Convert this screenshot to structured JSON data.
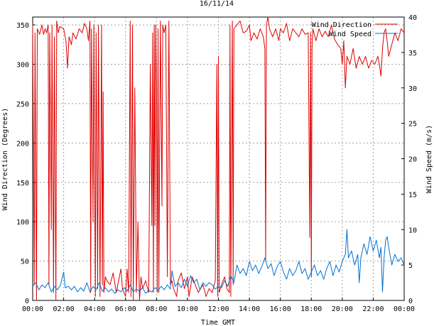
{
  "chart_data": {
    "type": "line",
    "title": "16/11/14",
    "xlabel": "Time GMT",
    "ylabel_left": "Wind Direction (Degrees)",
    "ylabel_right": "Wind Speed (m/s)",
    "x_ticks": [
      "00:00",
      "02:00",
      "04:00",
      "06:00",
      "08:00",
      "10:00",
      "12:00",
      "14:00",
      "16:00",
      "18:00",
      "20:00",
      "22:00",
      "00:00"
    ],
    "x_range_hours": [
      0,
      24
    ],
    "y_left_ticks": [
      0,
      50,
      100,
      150,
      200,
      250,
      300,
      350
    ],
    "y_left_range": [
      0,
      360
    ],
    "y_right_ticks": [
      0,
      5,
      10,
      15,
      20,
      25,
      30,
      35,
      40
    ],
    "y_right_range": [
      0,
      40
    ],
    "grid": true,
    "legend_position": "top-right",
    "series": [
      {
        "name": "Wind Direction",
        "axis": "left",
        "color": "#e00000",
        "points": [
          [
            0.0,
            350
          ],
          [
            0.1,
            20
          ],
          [
            0.15,
            340
          ],
          [
            0.25,
            0
          ],
          [
            0.3,
            345
          ],
          [
            0.45,
            338
          ],
          [
            0.6,
            350
          ],
          [
            0.7,
            338
          ],
          [
            0.8,
            345
          ],
          [
            0.9,
            340
          ],
          [
            1.0,
            350
          ],
          [
            1.05,
            20
          ],
          [
            1.1,
            340
          ],
          [
            1.2,
            90
          ],
          [
            1.25,
            350
          ],
          [
            1.35,
            10
          ],
          [
            1.4,
            335
          ],
          [
            1.5,
            0
          ],
          [
            1.55,
            355
          ],
          [
            1.65,
            340
          ],
          [
            1.75,
            348
          ],
          [
            2.0,
            345
          ],
          [
            2.15,
            330
          ],
          [
            2.25,
            295
          ],
          [
            2.35,
            335
          ],
          [
            2.5,
            325
          ],
          [
            2.6,
            340
          ],
          [
            2.8,
            332
          ],
          [
            3.0,
            345
          ],
          [
            3.2,
            340
          ],
          [
            3.35,
            352
          ],
          [
            3.5,
            345
          ],
          [
            3.6,
            330
          ],
          [
            3.7,
            355
          ],
          [
            3.75,
            10
          ],
          [
            3.8,
            345
          ],
          [
            3.9,
            100
          ],
          [
            3.95,
            350
          ],
          [
            4.05,
            5
          ],
          [
            4.1,
            340
          ],
          [
            4.2,
            15
          ],
          [
            4.25,
            350
          ],
          [
            4.35,
            5
          ],
          [
            4.45,
            350
          ],
          [
            4.5,
            20
          ],
          [
            4.55,
            265
          ],
          [
            4.6,
            10
          ],
          [
            4.7,
            30
          ],
          [
            4.8,
            25
          ],
          [
            5.0,
            20
          ],
          [
            5.2,
            35
          ],
          [
            5.4,
            10
          ],
          [
            5.5,
            20
          ],
          [
            5.7,
            40
          ],
          [
            5.8,
            15
          ],
          [
            6.0,
            5
          ],
          [
            6.1,
            40
          ],
          [
            6.2,
            10
          ],
          [
            6.3,
            355
          ],
          [
            6.35,
            5
          ],
          [
            6.45,
            350
          ],
          [
            6.5,
            0
          ],
          [
            6.6,
            270
          ],
          [
            6.7,
            10
          ],
          [
            6.8,
            100
          ],
          [
            6.9,
            0
          ],
          [
            7.0,
            30
          ],
          [
            7.1,
            15
          ],
          [
            7.3,
            25
          ],
          [
            7.5,
            10
          ],
          [
            7.6,
            300
          ],
          [
            7.7,
            95
          ],
          [
            7.75,
            340
          ],
          [
            7.8,
            10
          ],
          [
            7.85,
            350
          ],
          [
            7.9,
            95
          ],
          [
            7.95,
            350
          ],
          [
            8.0,
            270
          ],
          [
            8.05,
            10
          ],
          [
            8.1,
            345
          ],
          [
            8.15,
            10
          ],
          [
            8.25,
            355
          ],
          [
            8.35,
            120
          ],
          [
            8.4,
            350
          ],
          [
            8.5,
            340
          ],
          [
            8.6,
            350
          ],
          [
            8.7,
            30
          ],
          [
            8.8,
            355
          ],
          [
            8.9,
            20
          ],
          [
            9.0,
            25
          ],
          [
            9.1,
            15
          ],
          [
            9.3,
            5
          ],
          [
            9.4,
            25
          ],
          [
            9.6,
            35
          ],
          [
            9.8,
            15
          ],
          [
            10.0,
            30
          ],
          [
            10.1,
            5
          ],
          [
            10.3,
            30
          ],
          [
            10.5,
            20
          ],
          [
            10.7,
            10
          ],
          [
            11.0,
            20
          ],
          [
            11.2,
            5
          ],
          [
            11.4,
            15
          ],
          [
            11.6,
            10
          ],
          [
            11.8,
            25
          ],
          [
            11.9,
            300
          ],
          [
            11.95,
            5
          ],
          [
            12.0,
            310
          ],
          [
            12.05,
            10
          ],
          [
            12.2,
            20
          ],
          [
            12.4,
            30
          ],
          [
            12.55,
            15
          ],
          [
            12.7,
            10
          ],
          [
            12.75,
            350
          ],
          [
            12.8,
            5
          ],
          [
            12.9,
            355
          ],
          [
            12.95,
            20
          ],
          [
            13.0,
            345
          ],
          [
            13.2,
            350
          ],
          [
            13.4,
            355
          ],
          [
            13.6,
            340
          ],
          [
            13.8,
            342
          ],
          [
            14.0,
            350
          ],
          [
            14.1,
            330
          ],
          [
            14.3,
            340
          ],
          [
            14.5,
            332
          ],
          [
            14.7,
            345
          ],
          [
            14.9,
            335
          ],
          [
            15.0,
            320
          ],
          [
            15.05,
            50
          ],
          [
            15.1,
            350
          ],
          [
            15.2,
            360
          ],
          [
            15.3,
            345
          ],
          [
            15.5,
            335
          ],
          [
            15.7,
            345
          ],
          [
            15.9,
            330
          ],
          [
            16.0,
            345
          ],
          [
            16.2,
            340
          ],
          [
            16.4,
            352
          ],
          [
            16.6,
            330
          ],
          [
            16.8,
            345
          ],
          [
            17.0,
            340
          ],
          [
            17.2,
            335
          ],
          [
            17.4,
            345
          ],
          [
            17.6,
            338
          ],
          [
            17.8,
            340
          ],
          [
            17.9,
            80
          ],
          [
            17.95,
            340
          ],
          [
            18.0,
            30
          ],
          [
            18.05,
            320
          ],
          [
            18.1,
            345
          ],
          [
            18.3,
            330
          ],
          [
            18.5,
            345
          ],
          [
            18.7,
            335
          ],
          [
            18.9,
            342
          ],
          [
            19.1,
            335
          ],
          [
            19.3,
            350
          ],
          [
            19.5,
            332
          ],
          [
            19.7,
            325
          ],
          [
            19.9,
            320
          ],
          [
            20.0,
            300
          ],
          [
            20.1,
            330
          ],
          [
            20.2,
            270
          ],
          [
            20.3,
            310
          ],
          [
            20.5,
            300
          ],
          [
            20.7,
            320
          ],
          [
            20.9,
            295
          ],
          [
            21.1,
            310
          ],
          [
            21.3,
            300
          ],
          [
            21.5,
            310
          ],
          [
            21.7,
            295
          ],
          [
            21.9,
            305
          ],
          [
            22.1,
            300
          ],
          [
            22.3,
            310
          ],
          [
            22.4,
            300
          ],
          [
            22.5,
            285
          ],
          [
            22.6,
            320
          ],
          [
            22.7,
            340
          ],
          [
            22.8,
            345
          ],
          [
            22.9,
            330
          ],
          [
            23.0,
            310
          ],
          [
            23.2,
            325
          ],
          [
            23.4,
            340
          ],
          [
            23.6,
            330
          ],
          [
            23.8,
            345
          ],
          [
            24.0,
            340
          ]
        ]
      },
      {
        "name": "Wind Speed",
        "axis": "right",
        "color": "#0070d0",
        "points": [
          [
            0.0,
            2
          ],
          [
            0.2,
            2.5
          ],
          [
            0.4,
            1.5
          ],
          [
            0.6,
            2.2
          ],
          [
            0.8,
            1.8
          ],
          [
            1.0,
            2.5
          ],
          [
            1.2,
            1.2
          ],
          [
            1.4,
            2
          ],
          [
            1.6,
            1.5
          ],
          [
            1.8,
            2.2
          ],
          [
            2.0,
            4
          ],
          [
            2.1,
            1.8
          ],
          [
            2.3,
            2
          ],
          [
            2.5,
            1.5
          ],
          [
            2.7,
            2
          ],
          [
            2.9,
            1.2
          ],
          [
            3.1,
            1.8
          ],
          [
            3.3,
            1.3
          ],
          [
            3.5,
            2.5
          ],
          [
            3.7,
            1.2
          ],
          [
            3.9,
            2
          ],
          [
            4.1,
            1.5
          ],
          [
            4.3,
            2.5
          ],
          [
            4.5,
            1.3
          ],
          [
            4.7,
            1.8
          ],
          [
            4.9,
            1.2
          ],
          [
            5.1,
            1.6
          ],
          [
            5.3,
            1
          ],
          [
            5.5,
            1.5
          ],
          [
            5.7,
            1.2
          ],
          [
            5.9,
            1.8
          ],
          [
            6.1,
            1.3
          ],
          [
            6.3,
            2.2
          ],
          [
            6.5,
            1.2
          ],
          [
            6.7,
            1.6
          ],
          [
            6.9,
            1.3
          ],
          [
            7.1,
            1.8
          ],
          [
            7.3,
            1
          ],
          [
            7.5,
            1.4
          ],
          [
            7.7,
            1.2
          ],
          [
            7.9,
            1.8
          ],
          [
            8.1,
            1.4
          ],
          [
            8.3,
            2
          ],
          [
            8.5,
            1.5
          ],
          [
            8.7,
            2.2
          ],
          [
            8.9,
            1.6
          ],
          [
            9.0,
            4.2
          ],
          [
            9.2,
            2
          ],
          [
            9.4,
            2.5
          ],
          [
            9.6,
            1.8
          ],
          [
            9.8,
            3
          ],
          [
            10.0,
            2
          ],
          [
            10.2,
            3.5
          ],
          [
            10.4,
            2.5
          ],
          [
            10.6,
            3
          ],
          [
            10.8,
            1.5
          ],
          [
            11.0,
            2.5
          ],
          [
            11.2,
            2
          ],
          [
            11.4,
            2.5
          ],
          [
            11.6,
            2.2
          ],
          [
            11.8,
            1.6
          ],
          [
            12.0,
            2
          ],
          [
            12.2,
            1.8
          ],
          [
            12.4,
            2.8
          ],
          [
            12.6,
            2
          ],
          [
            12.8,
            3.5
          ],
          [
            13.0,
            2.5
          ],
          [
            13.2,
            5
          ],
          [
            13.4,
            3.8
          ],
          [
            13.6,
            4.5
          ],
          [
            13.8,
            3.5
          ],
          [
            14.0,
            5.5
          ],
          [
            14.2,
            4.2
          ],
          [
            14.4,
            5
          ],
          [
            14.6,
            3.8
          ],
          [
            14.8,
            4.8
          ],
          [
            15.0,
            6
          ],
          [
            15.2,
            4.5
          ],
          [
            15.4,
            5.2
          ],
          [
            15.6,
            3.5
          ],
          [
            15.8,
            4.8
          ],
          [
            16.0,
            5.5
          ],
          [
            16.2,
            4
          ],
          [
            16.4,
            3
          ],
          [
            16.6,
            4.5
          ],
          [
            16.8,
            3.5
          ],
          [
            17.0,
            4.2
          ],
          [
            17.2,
            5.5
          ],
          [
            17.4,
            3.8
          ],
          [
            17.6,
            4.5
          ],
          [
            17.8,
            3
          ],
          [
            18.0,
            4
          ],
          [
            18.2,
            5
          ],
          [
            18.4,
            3.5
          ],
          [
            18.6,
            4.2
          ],
          [
            18.8,
            3
          ],
          [
            19.0,
            4.5
          ],
          [
            19.2,
            5.5
          ],
          [
            19.4,
            3.5
          ],
          [
            19.6,
            5
          ],
          [
            19.8,
            4
          ],
          [
            20.0,
            5.5
          ],
          [
            20.2,
            6.5
          ],
          [
            20.3,
            10
          ],
          [
            20.4,
            6
          ],
          [
            20.6,
            7
          ],
          [
            20.8,
            5
          ],
          [
            21.0,
            6.5
          ],
          [
            21.1,
            2.5
          ],
          [
            21.2,
            6
          ],
          [
            21.4,
            8
          ],
          [
            21.6,
            6.5
          ],
          [
            21.8,
            9
          ],
          [
            22.0,
            7
          ],
          [
            22.2,
            8.5
          ],
          [
            22.4,
            6
          ],
          [
            22.5,
            7.5
          ],
          [
            22.6,
            1.2
          ],
          [
            22.7,
            6
          ],
          [
            22.8,
            8.5
          ],
          [
            22.9,
            9
          ],
          [
            23.0,
            7.5
          ],
          [
            23.2,
            5
          ],
          [
            23.4,
            6.5
          ],
          [
            23.6,
            5.5
          ],
          [
            23.8,
            6
          ],
          [
            24.0,
            5
          ]
        ]
      }
    ]
  }
}
